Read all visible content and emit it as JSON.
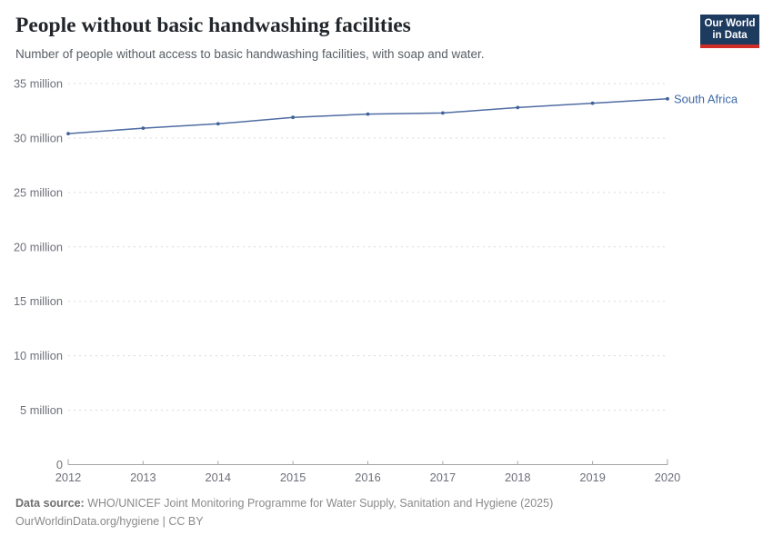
{
  "header": {
    "title": "People without basic handwashing facilities",
    "subtitle": "Number of people without access to basic handwashing facilities, with soap and water.",
    "logo": {
      "line1": "Our World",
      "line2": "in Data"
    }
  },
  "chart_data": {
    "type": "line",
    "title": "People without basic handwashing facilities",
    "x": [
      2012,
      2013,
      2014,
      2015,
      2016,
      2017,
      2018,
      2019,
      2020
    ],
    "series": [
      {
        "name": "South Africa",
        "values": [
          30.4,
          30.9,
          31.3,
          31.9,
          32.2,
          32.3,
          32.8,
          33.2,
          33.6
        ]
      }
    ],
    "unit": "million people",
    "ylim": [
      0,
      35
    ],
    "yticks": [
      0,
      5,
      10,
      15,
      20,
      25,
      30,
      35
    ],
    "ytick_labels": [
      "0",
      "5 million",
      "10 million",
      "15 million",
      "20 million",
      "25 million",
      "30 million",
      "35 million"
    ],
    "xtick_labels": [
      "2012",
      "2013",
      "2014",
      "2015",
      "2016",
      "2017",
      "2018",
      "2019",
      "2020"
    ],
    "grid": "horizontal-dashed",
    "legend": "line-end-label"
  },
  "colors": {
    "line": "#506da3",
    "point": "#40619b",
    "series_label": "#3d69a6",
    "logo_bg": "#1d3a5f",
    "logo_accent": "#cf2d27",
    "grid": "#d9d9d9",
    "axis": "#a5a5a5",
    "tick_text": "#6e7079",
    "title_text": "#21262b",
    "subtitle_text": "#575d63",
    "footer_text": "#8a8a8a"
  },
  "footer": {
    "datasource_label": "Data source:",
    "datasource_text": "WHO/UNICEF Joint Monitoring Programme for Water Supply, Sanitation and Hygiene (2025)",
    "attribution": "OurWorldinData.org/hygiene | CC BY"
  }
}
